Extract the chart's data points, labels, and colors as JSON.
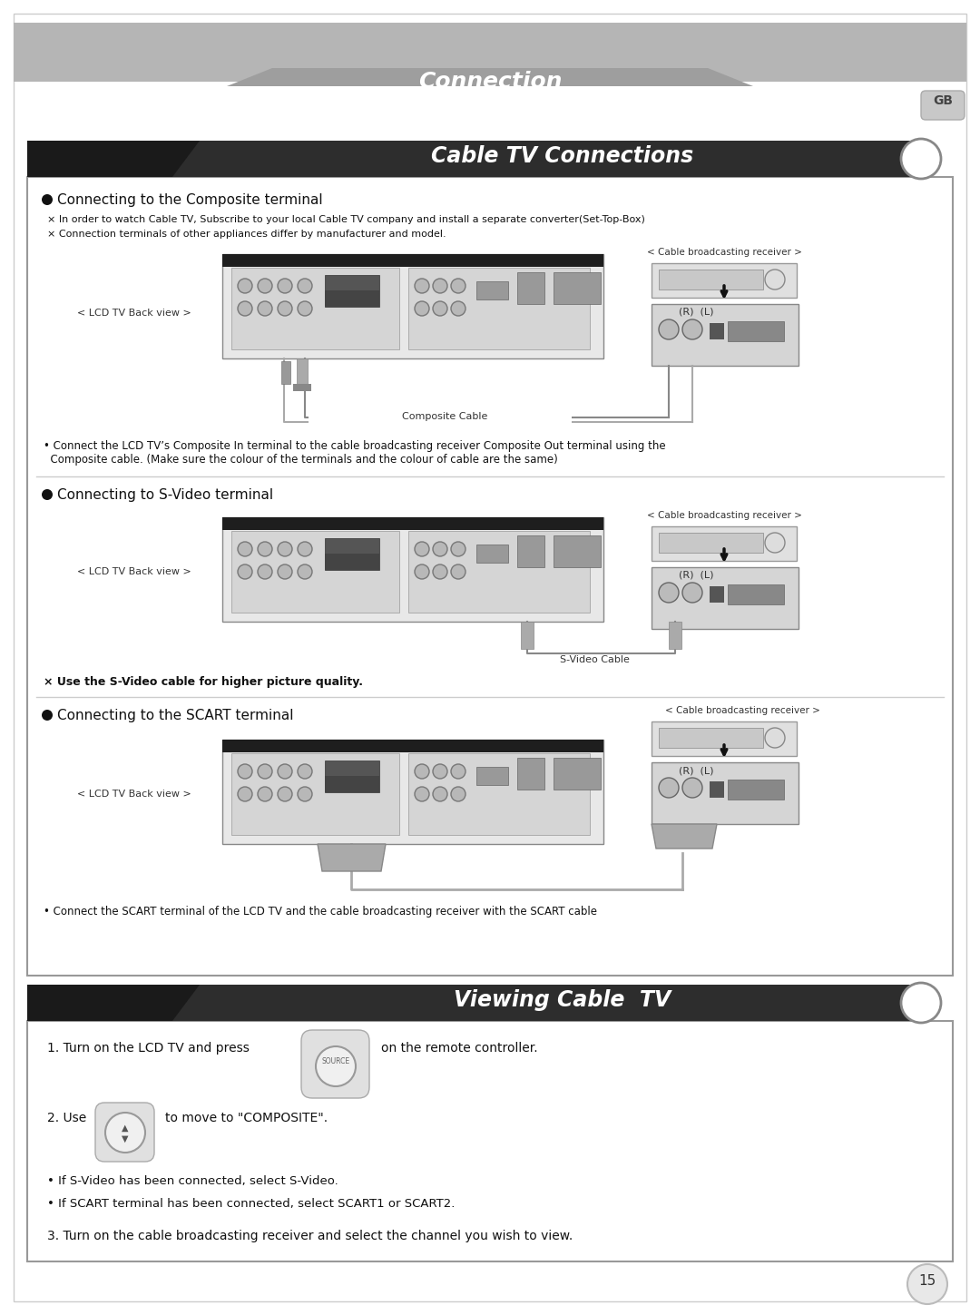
{
  "page_bg": "#ffffff",
  "header_bg": "#aaaaaa",
  "header_text": "Connection",
  "header_text_color": "#ffffff",
  "gb_text": "GB",
  "section1_header_text": "Cable TV Connections",
  "section1_header_text_color": "#ffffff",
  "section2_header_text": "Viewing Cable  TV",
  "section2_header_text_color": "#ffffff",
  "section_titles": [
    "Connecting to the Composite terminal",
    "Connecting to S-Video terminal",
    "Connecting to the SCART terminal"
  ],
  "notes_composite": [
    "× In order to watch Cable TV, Subscribe to your local Cable TV company and install a separate converter(Set-Top-Box)",
    "× Connection terminals of other appliances differ by manufacturer and model."
  ],
  "composite_desc1": "• Connect the LCD TV’s Composite In terminal to the cable broadcasting receiver Composite Out terminal using the",
  "composite_desc2": "  Composite cable. (Make sure the colour of the terminals and the colour of cable are the same)",
  "svideo_note": "× Use the S-Video cable for higher picture quality.",
  "scart_desc": "• Connect the SCART terminal of the LCD TV and the cable broadcasting receiver with the SCART cable",
  "lcd_back_label": "< LCD TV Back view >",
  "cable_broadcast_label": "< Cable broadcasting receiver >",
  "composite_cable_label": "Composite Cable",
  "svideo_cable_label": "S-Video Cable",
  "rl_label": "(R)  (L)",
  "page_number": "15"
}
